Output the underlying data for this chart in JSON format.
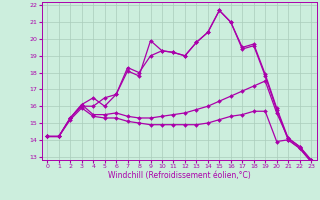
{
  "title": "",
  "xlabel": "Windchill (Refroidissement éolien,°C)",
  "background_color": "#cceedd",
  "grid_color": "#aaccbb",
  "line_color": "#aa00aa",
  "xlim": [
    -0.5,
    23.5
  ],
  "ylim": [
    12.8,
    22.2
  ],
  "yticks": [
    13,
    14,
    15,
    16,
    17,
    18,
    19,
    20,
    21,
    22
  ],
  "xticks": [
    0,
    1,
    2,
    3,
    4,
    5,
    6,
    7,
    8,
    9,
    10,
    11,
    12,
    13,
    14,
    15,
    16,
    17,
    18,
    19,
    20,
    21,
    22,
    23
  ],
  "series": [
    [
      14.2,
      14.2,
      15.3,
      16.0,
      16.0,
      16.5,
      16.7,
      18.1,
      17.8,
      19.9,
      19.3,
      19.2,
      19.0,
      19.8,
      20.4,
      21.7,
      21.0,
      19.4,
      19.6,
      17.8,
      15.8,
      14.0,
      13.5,
      12.7
    ],
    [
      14.2,
      14.2,
      15.3,
      16.1,
      16.5,
      16.0,
      16.7,
      18.3,
      18.0,
      19.0,
      19.3,
      19.2,
      19.0,
      19.8,
      20.4,
      21.7,
      21.0,
      19.5,
      19.7,
      17.9,
      15.9,
      14.1,
      13.6,
      12.8
    ],
    [
      14.2,
      14.2,
      15.3,
      16.1,
      15.5,
      15.5,
      15.6,
      15.4,
      15.3,
      15.3,
      15.4,
      15.5,
      15.6,
      15.8,
      16.0,
      16.3,
      16.6,
      16.9,
      17.2,
      17.5,
      15.6,
      14.1,
      13.6,
      12.8
    ],
    [
      14.2,
      14.2,
      15.2,
      15.9,
      15.4,
      15.3,
      15.3,
      15.1,
      15.0,
      14.9,
      14.9,
      14.9,
      14.9,
      14.9,
      15.0,
      15.2,
      15.4,
      15.5,
      15.7,
      15.7,
      13.9,
      14.0,
      13.5,
      12.7
    ]
  ],
  "xlabel_fontsize": 5.5,
  "tick_fontsize": 4.5,
  "marker_size": 2.0,
  "linewidth": 0.9
}
